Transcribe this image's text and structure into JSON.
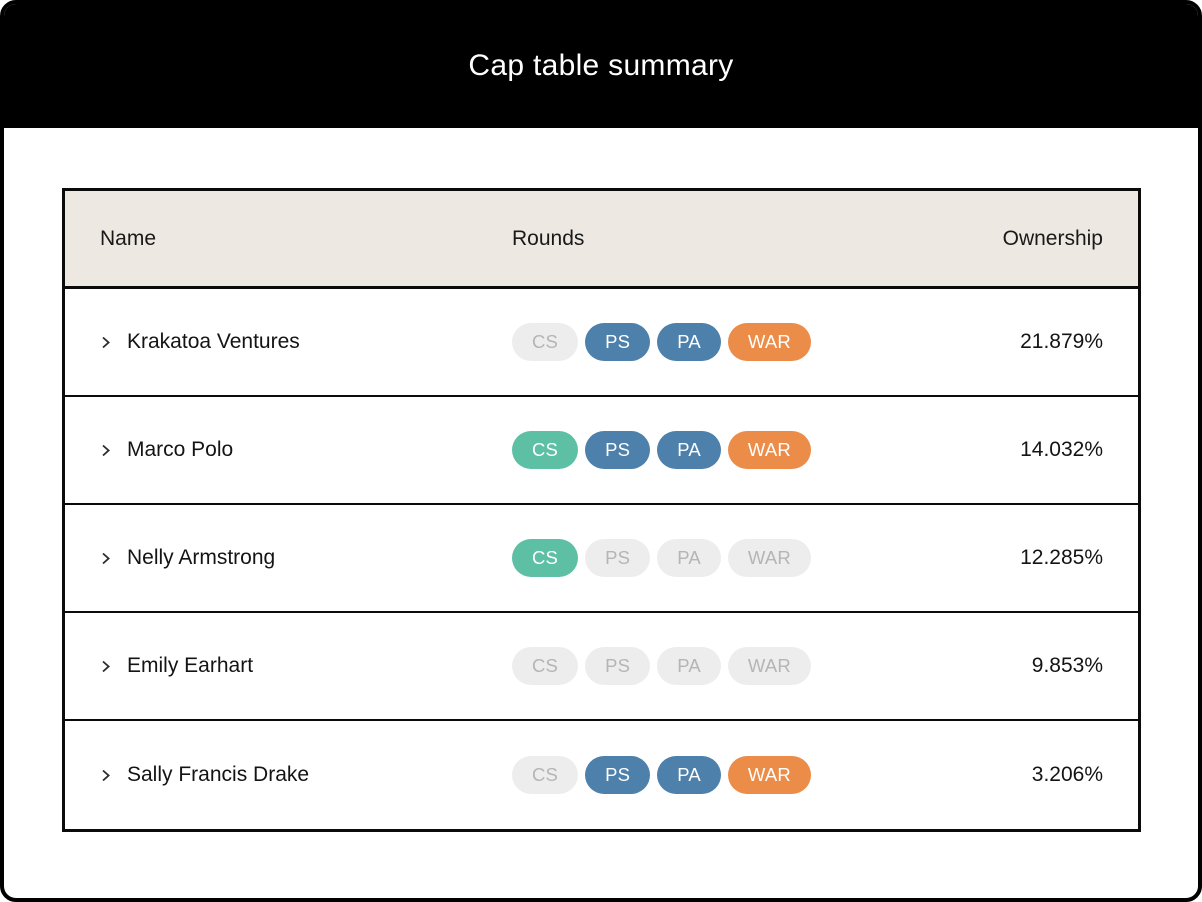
{
  "title": "Cap table summary",
  "colors": {
    "blue": "#4D80AA",
    "teal": "#5DBFA4",
    "orange": "#EC8C49",
    "inactive_bg": "#EDEDED",
    "inactive_text": "#B5B5B5",
    "header_bg": "#EDE8E2",
    "frame_black": "#000000"
  },
  "table": {
    "columns": [
      "Name",
      "Rounds",
      "Ownership"
    ],
    "round_types": [
      "CS",
      "PS",
      "PA",
      "WAR"
    ],
    "rows": [
      {
        "name": "Krakatoa Ventures",
        "ownership": "21.879%",
        "rounds": [
          {
            "label": "CS",
            "active": false,
            "color": null
          },
          {
            "label": "PS",
            "active": true,
            "color": "blue"
          },
          {
            "label": "PA",
            "active": true,
            "color": "blue"
          },
          {
            "label": "WAR",
            "active": true,
            "color": "orange"
          }
        ]
      },
      {
        "name": "Marco Polo",
        "ownership": "14.032%",
        "rounds": [
          {
            "label": "CS",
            "active": true,
            "color": "teal"
          },
          {
            "label": "PS",
            "active": true,
            "color": "blue"
          },
          {
            "label": "PA",
            "active": true,
            "color": "blue"
          },
          {
            "label": "WAR",
            "active": true,
            "color": "orange"
          }
        ]
      },
      {
        "name": "Nelly Armstrong",
        "ownership": "12.285%",
        "rounds": [
          {
            "label": "CS",
            "active": true,
            "color": "teal"
          },
          {
            "label": "PS",
            "active": false,
            "color": null
          },
          {
            "label": "PA",
            "active": false,
            "color": null
          },
          {
            "label": "WAR",
            "active": false,
            "color": null
          }
        ]
      },
      {
        "name": "Emily Earhart",
        "ownership": "9.853%",
        "rounds": [
          {
            "label": "CS",
            "active": false,
            "color": null
          },
          {
            "label": "PS",
            "active": false,
            "color": null
          },
          {
            "label": "PA",
            "active": false,
            "color": null
          },
          {
            "label": "WAR",
            "active": false,
            "color": null
          }
        ]
      },
      {
        "name": "Sally Francis Drake",
        "ownership": "3.206%",
        "rounds": [
          {
            "label": "CS",
            "active": false,
            "color": null
          },
          {
            "label": "PS",
            "active": true,
            "color": "blue"
          },
          {
            "label": "PA",
            "active": true,
            "color": "blue"
          },
          {
            "label": "WAR",
            "active": true,
            "color": "orange"
          }
        ]
      }
    ]
  }
}
